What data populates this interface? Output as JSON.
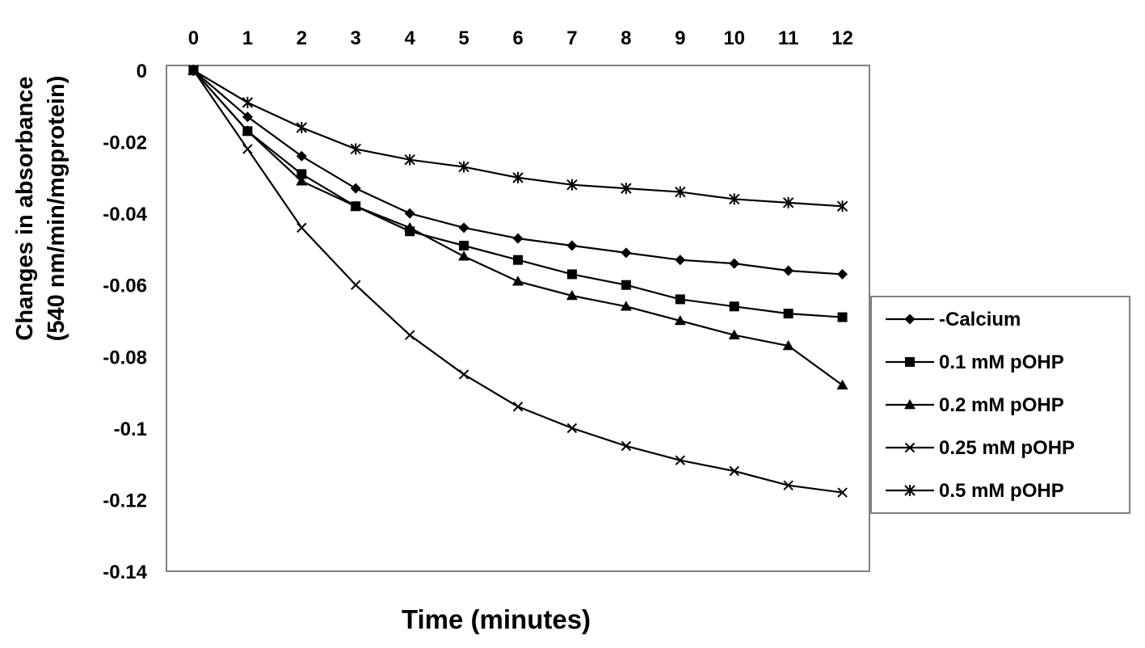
{
  "chart_data": {
    "type": "line",
    "title": "",
    "xlabel": "Time (minutes)",
    "ylabel_line1": "Changes in absorbance",
    "ylabel_line2": "(540 nm/min/mgprotein)",
    "x": [
      0,
      1,
      2,
      3,
      4,
      5,
      6,
      7,
      8,
      9,
      10,
      11,
      12
    ],
    "x_tick_labels": [
      "0",
      "1",
      "2",
      "3",
      "4",
      "5",
      "6",
      "7",
      "8",
      "9",
      "10",
      "11",
      "12"
    ],
    "xaxis_position": "top",
    "xlim": [
      -0.5,
      12.5
    ],
    "y_ticks": [
      0,
      -0.02,
      -0.04,
      -0.06,
      -0.08,
      -0.1,
      -0.12,
      -0.14
    ],
    "y_tick_labels": [
      "0",
      "-0.02",
      "-0.04",
      "-0.06",
      "-0.08",
      "-0.1",
      "-0.12",
      "-0.14"
    ],
    "ylim": [
      -0.14,
      0
    ],
    "grid": false,
    "legend_position": "right",
    "series": [
      {
        "name": "-Calcium",
        "marker": "diamond",
        "values": [
          0,
          -0.013,
          -0.024,
          -0.033,
          -0.04,
          -0.044,
          -0.047,
          -0.049,
          -0.051,
          -0.053,
          -0.054,
          -0.056,
          -0.057
        ]
      },
      {
        "name": "0.1 mM pOHP",
        "marker": "square",
        "values": [
          0,
          -0.017,
          -0.029,
          -0.038,
          -0.045,
          -0.049,
          -0.053,
          -0.057,
          -0.06,
          -0.064,
          -0.066,
          -0.068,
          -0.069
        ]
      },
      {
        "name": "0.2 mM pOHP",
        "marker": "triangle",
        "values": [
          0,
          -0.017,
          -0.031,
          -0.038,
          -0.044,
          -0.052,
          -0.059,
          -0.063,
          -0.066,
          -0.07,
          -0.074,
          -0.077,
          -0.088
        ]
      },
      {
        "name": "0.25 mM pOHP",
        "marker": "x",
        "values": [
          0,
          -0.022,
          -0.044,
          -0.06,
          -0.074,
          -0.085,
          -0.094,
          -0.1,
          -0.105,
          -0.109,
          -0.112,
          -0.116,
          -0.118
        ]
      },
      {
        "name": "0.5 mM pOHP",
        "marker": "star",
        "values": [
          0,
          -0.009,
          -0.016,
          -0.022,
          -0.025,
          -0.027,
          -0.03,
          -0.032,
          -0.033,
          -0.034,
          -0.036,
          -0.037,
          -0.038
        ]
      }
    ],
    "line_color": "#000000",
    "frame_color": "#808080"
  }
}
